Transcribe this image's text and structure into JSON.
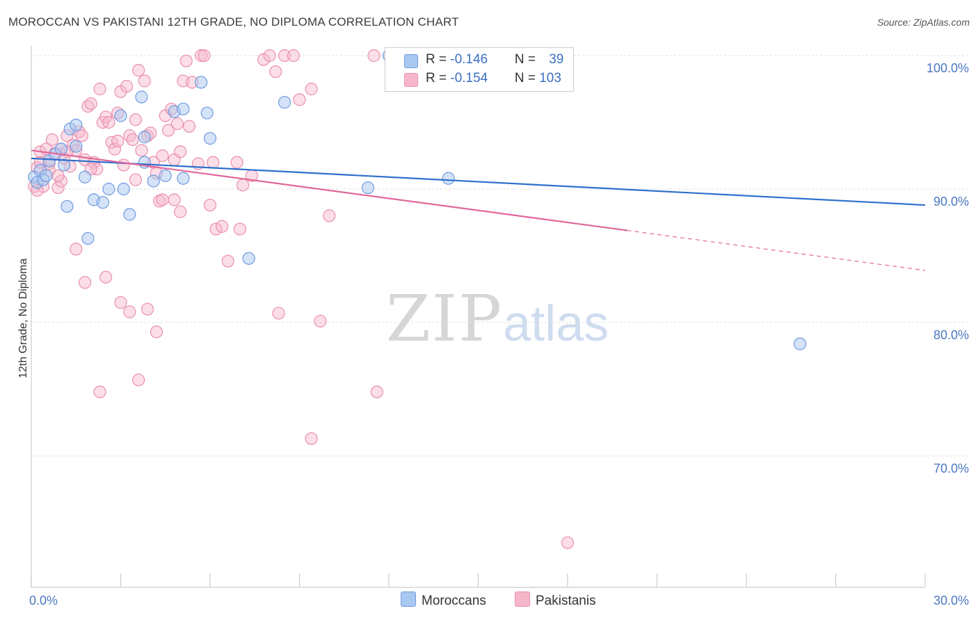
{
  "header": {
    "title": "MOROCCAN VS PAKISTANI 12TH GRADE, NO DIPLOMA CORRELATION CHART",
    "source": "Source: ZipAtlas.com"
  },
  "watermark": {
    "zip": "ZIP",
    "atlas": "atlas"
  },
  "legend": {
    "moroccans": {
      "r_label": "R = ",
      "r_value": "-0.146",
      "n_label": "N = ",
      "n_value": "39"
    },
    "pakistanis": {
      "r_label": "R = ",
      "r_value": "-0.154",
      "n_label": "N = ",
      "n_value": "103"
    }
  },
  "colors": {
    "moroccans_fill": "#a9c8f0",
    "moroccans_stroke": "#6f9be0",
    "moroccans_line": "#2e6fcc",
    "pakistanis_fill": "#f6b6ca",
    "pakistanis_stroke": "#ea8fae",
    "pakistanis_line": "#e0679a",
    "tick_text": "#4a78c2",
    "grid": "#dddddd"
  },
  "chart_data": {
    "type": "scatter",
    "title": "MOROCCAN VS PAKISTANI 12TH GRADE, NO DIPLOMA CORRELATION CHART",
    "ylabel": "12th Grade, No Diploma",
    "xlabel": "",
    "xlim": [
      0,
      30
    ],
    "ylim": [
      60,
      101
    ],
    "x_tick_labels": [
      "0.0%",
      "30.0%"
    ],
    "y_ticks": [
      70,
      80,
      90,
      100
    ],
    "y_tick_labels": [
      "70.0%",
      "80.0%",
      "90.0%",
      "100.0%"
    ],
    "grid": true,
    "legend_position": "top-center",
    "series": [
      {
        "name": "Moroccans",
        "color": "#a9c8f0",
        "trend": {
          "x": [
            0,
            30
          ],
          "y": [
            92.3,
            88.8
          ]
        },
        "points": [
          [
            0.1,
            90.9
          ],
          [
            0.2,
            90.5
          ],
          [
            0.3,
            91.4
          ],
          [
            0.4,
            90.7
          ],
          [
            0.5,
            91.0
          ],
          [
            0.6,
            92.1
          ],
          [
            0.8,
            92.6
          ],
          [
            1.0,
            93.0
          ],
          [
            1.3,
            94.5
          ],
          [
            1.5,
            93.2
          ],
          [
            1.5,
            94.8
          ],
          [
            1.8,
            90.9
          ],
          [
            2.1,
            89.2
          ],
          [
            2.6,
            90.0
          ],
          [
            3.0,
            95.5
          ],
          [
            3.3,
            88.1
          ],
          [
            3.7,
            96.9
          ],
          [
            3.8,
            93.9
          ],
          [
            3.8,
            92.0
          ],
          [
            4.1,
            90.6
          ],
          [
            4.5,
            91.0
          ],
          [
            4.8,
            95.8
          ],
          [
            5.1,
            96.0
          ],
          [
            5.1,
            90.8
          ],
          [
            5.9,
            95.7
          ],
          [
            5.7,
            98.0
          ],
          [
            6.0,
            93.8
          ],
          [
            7.3,
            84.8
          ],
          [
            8.5,
            96.5
          ],
          [
            11.3,
            90.1
          ],
          [
            12.0,
            100.0
          ],
          [
            14.0,
            90.8
          ],
          [
            16.0,
            100.0
          ],
          [
            25.8,
            78.4
          ],
          [
            1.2,
            88.7
          ],
          [
            1.9,
            86.3
          ],
          [
            2.4,
            89.0
          ],
          [
            3.1,
            90.0
          ],
          [
            1.1,
            91.8
          ]
        ]
      },
      {
        "name": "Pakistanis",
        "color": "#f6b6ca",
        "trend": {
          "x": [
            0,
            20
          ],
          "y": [
            92.9,
            86.9
          ]
        },
        "trend_dashed": {
          "x": [
            20,
            30
          ],
          "y": [
            86.9,
            83.9
          ]
        },
        "points": [
          [
            0.1,
            90.2
          ],
          [
            0.2,
            91.6
          ],
          [
            0.3,
            92.8
          ],
          [
            0.4,
            90.2
          ],
          [
            0.5,
            93.0
          ],
          [
            0.6,
            91.9
          ],
          [
            0.7,
            93.7
          ],
          [
            0.8,
            92.7
          ],
          [
            0.9,
            90.1
          ],
          [
            1.0,
            93.0
          ],
          [
            1.1,
            92.3
          ],
          [
            1.2,
            94.0
          ],
          [
            1.3,
            91.7
          ],
          [
            1.4,
            93.3
          ],
          [
            1.5,
            92.9
          ],
          [
            1.6,
            94.3
          ],
          [
            1.7,
            94.0
          ],
          [
            1.8,
            92.2
          ],
          [
            1.9,
            96.2
          ],
          [
            2.0,
            96.4
          ],
          [
            2.1,
            92.0
          ],
          [
            2.2,
            91.5
          ],
          [
            2.3,
            97.5
          ],
          [
            2.4,
            95.0
          ],
          [
            2.5,
            95.4
          ],
          [
            2.6,
            95.0
          ],
          [
            2.7,
            93.5
          ],
          [
            2.8,
            93.0
          ],
          [
            2.9,
            95.7
          ],
          [
            3.0,
            97.3
          ],
          [
            3.1,
            91.8
          ],
          [
            3.2,
            97.7
          ],
          [
            3.3,
            94.0
          ],
          [
            3.4,
            93.7
          ],
          [
            3.5,
            95.2
          ],
          [
            3.6,
            98.9
          ],
          [
            3.7,
            92.9
          ],
          [
            3.8,
            98.1
          ],
          [
            3.9,
            94.0
          ],
          [
            4.0,
            94.2
          ],
          [
            4.1,
            92.0
          ],
          [
            4.2,
            91.2
          ],
          [
            4.3,
            89.1
          ],
          [
            4.4,
            89.2
          ],
          [
            4.5,
            95.5
          ],
          [
            4.6,
            94.4
          ],
          [
            4.7,
            96.0
          ],
          [
            4.8,
            92.2
          ],
          [
            4.9,
            94.9
          ],
          [
            5.0,
            92.8
          ],
          [
            5.1,
            98.1
          ],
          [
            5.2,
            99.6
          ],
          [
            5.3,
            94.7
          ],
          [
            5.4,
            98.0
          ],
          [
            5.6,
            91.9
          ],
          [
            5.7,
            100.0
          ],
          [
            5.8,
            100.0
          ],
          [
            6.0,
            88.8
          ],
          [
            6.2,
            87.0
          ],
          [
            6.4,
            87.2
          ],
          [
            6.6,
            84.6
          ],
          [
            6.9,
            92.0
          ],
          [
            7.1,
            90.3
          ],
          [
            7.4,
            91.0
          ],
          [
            7.8,
            99.7
          ],
          [
            8.0,
            100.0
          ],
          [
            8.2,
            98.8
          ],
          [
            8.5,
            100.0
          ],
          [
            8.8,
            100.0
          ],
          [
            9.0,
            96.7
          ],
          [
            9.4,
            97.5
          ],
          [
            9.7,
            80.1
          ],
          [
            10.0,
            88.0
          ],
          [
            11.5,
            100.0
          ],
          [
            12.3,
            100.0
          ],
          [
            13.0,
            100.0
          ],
          [
            0.3,
            92.0
          ],
          [
            0.6,
            91.4
          ],
          [
            1.0,
            90.6
          ],
          [
            1.5,
            85.5
          ],
          [
            1.8,
            83.0
          ],
          [
            2.5,
            83.4
          ],
          [
            3.0,
            81.5
          ],
          [
            3.3,
            80.8
          ],
          [
            3.9,
            81.0
          ],
          [
            4.2,
            79.3
          ],
          [
            3.6,
            75.7
          ],
          [
            2.3,
            74.8
          ],
          [
            9.4,
            71.3
          ],
          [
            11.6,
            74.8
          ],
          [
            18.0,
            63.5
          ],
          [
            8.3,
            80.7
          ],
          [
            7.0,
            87.0
          ],
          [
            5.0,
            88.3
          ],
          [
            3.5,
            90.7
          ],
          [
            4.8,
            89.2
          ],
          [
            2.0,
            91.5
          ],
          [
            1.2,
            92.8
          ],
          [
            0.9,
            91.0
          ],
          [
            0.2,
            89.9
          ],
          [
            6.1,
            92.0
          ],
          [
            4.4,
            92.5
          ],
          [
            2.9,
            93.6
          ]
        ]
      }
    ]
  },
  "bottom_legend": {
    "moroccans": "Moroccans",
    "pakistanis": "Pakistanis"
  }
}
